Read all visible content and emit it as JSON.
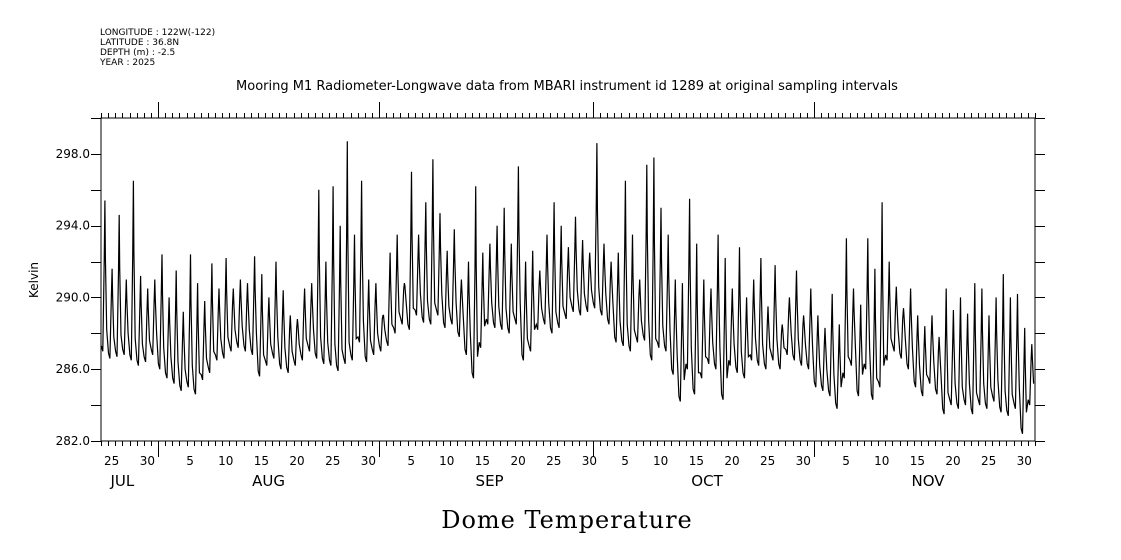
{
  "header": {
    "lines": [
      "LONGITUDE : 122W(-122)",
      "LATITUDE : 36.8N",
      "DEPTH (m) : -2.5",
      "YEAR : 2025"
    ]
  },
  "chart_data": {
    "type": "line",
    "title": "Mooring M1 Radiometer-Longwave data from MBARI instrument id 1289 at original sampling intervals",
    "bottom_title": "Dome Temperature",
    "ylabel": "Kelvin",
    "xlabel": "",
    "ylim": [
      282,
      300
    ],
    "yticks": [
      "282.0",
      "286.0",
      "290.0",
      "294.0",
      "298.0"
    ],
    "ytick_values": [
      282,
      286,
      290,
      294,
      298
    ],
    "x_start": "2025-07-24",
    "x_days": 131,
    "month_starts_day": [
      8,
      39,
      69,
      100
    ],
    "day_labels": [
      {
        "day": 1,
        "label": "25"
      },
      {
        "day": 6,
        "label": "30"
      },
      {
        "day": 12,
        "label": "5"
      },
      {
        "day": 17,
        "label": "10"
      },
      {
        "day": 22,
        "label": "15"
      },
      {
        "day": 27,
        "label": "20"
      },
      {
        "day": 32,
        "label": "25"
      },
      {
        "day": 37,
        "label": "30"
      },
      {
        "day": 43,
        "label": "5"
      },
      {
        "day": 48,
        "label": "10"
      },
      {
        "day": 53,
        "label": "15"
      },
      {
        "day": 58,
        "label": "20"
      },
      {
        "day": 63,
        "label": "25"
      },
      {
        "day": 68,
        "label": "30"
      },
      {
        "day": 73,
        "label": "5"
      },
      {
        "day": 78,
        "label": "10"
      },
      {
        "day": 83,
        "label": "15"
      },
      {
        "day": 88,
        "label": "20"
      },
      {
        "day": 93,
        "label": "25"
      },
      {
        "day": 98,
        "label": "30"
      },
      {
        "day": 104,
        "label": "5"
      },
      {
        "day": 109,
        "label": "10"
      },
      {
        "day": 114,
        "label": "15"
      },
      {
        "day": 119,
        "label": "20"
      },
      {
        "day": 124,
        "label": "25"
      },
      {
        "day": 129,
        "label": "30"
      }
    ],
    "month_labels": [
      {
        "day": 2.5,
        "label": "JUL"
      },
      {
        "day": 23,
        "label": "AUG"
      },
      {
        "day": 54,
        "label": "SEP"
      },
      {
        "day": 84.5,
        "label": "OCT"
      },
      {
        "day": 115.5,
        "label": "NOV"
      }
    ],
    "series": [
      {
        "name": "Dome Temperature",
        "color": "#000000",
        "daily_max": [
          295.4,
          291.6,
          294.6,
          291.0,
          296.5,
          291.2,
          290.5,
          291.0,
          292.4,
          290.0,
          291.5,
          289.2,
          292.4,
          290.8,
          289.8,
          291.9,
          290.5,
          292.2,
          290.5,
          291.0,
          290.8,
          292.3,
          291.3,
          290.0,
          292.0,
          290.4,
          289.0,
          288.8,
          290.5,
          290.8,
          296.0,
          292.0,
          296.2,
          294.0,
          298.7,
          293.5,
          296.5,
          291.0,
          290.8,
          289.0,
          292.5,
          293.5,
          290.8,
          297.0,
          293.5,
          295.3,
          297.7,
          294.7,
          292.6,
          293.8,
          291.0,
          292.0,
          296.2,
          292.5,
          293.0,
          294.0,
          295.0,
          293.0,
          297.3,
          292.0,
          292.6,
          291.5,
          293.5,
          295.3,
          294.0,
          292.8,
          294.5,
          293.2,
          292.5,
          298.6,
          293.0,
          292.0,
          292.5,
          296.5,
          293.5,
          291.0,
          297.4,
          297.8,
          295.0,
          293.5,
          291.0,
          290.8,
          295.5,
          293.0,
          291.0,
          290.5,
          293.5,
          292.2,
          290.5,
          292.8,
          290.0,
          291.0,
          292.2,
          289.5,
          291.8,
          288.5,
          290.0,
          291.5,
          289.0,
          290.5,
          289.0,
          288.3,
          290.2,
          288.5,
          293.3,
          290.5,
          289.6,
          293.3,
          291.6,
          295.3,
          292.0,
          290.6,
          289.4,
          290.5,
          289.0,
          288.4,
          289.0,
          287.8,
          290.5,
          289.3,
          290.0,
          289.1,
          290.8,
          290.5,
          289.0,
          290.0,
          291.3,
          290.0,
          290.2,
          288.3,
          287.4
        ],
        "daily_min": [
          287.0,
          286.6,
          286.7,
          286.8,
          286.5,
          286.2,
          286.4,
          286.8,
          286.0,
          285.5,
          285.2,
          284.8,
          285.0,
          284.6,
          285.4,
          285.8,
          286.5,
          286.6,
          287.0,
          287.2,
          287.0,
          286.8,
          285.6,
          286.2,
          286.6,
          286.0,
          285.8,
          286.2,
          286.5,
          287.0,
          286.6,
          286.3,
          286.2,
          285.9,
          286.3,
          286.5,
          287.5,
          286.4,
          286.8,
          287.0,
          287.3,
          288.0,
          288.5,
          288.2,
          289.0,
          288.6,
          288.5,
          289.0,
          288.3,
          288.5,
          287.8,
          286.8,
          285.5,
          287.2,
          288.5,
          288.3,
          288.2,
          288.0,
          288.5,
          286.5,
          287.0,
          288.2,
          288.5,
          288.0,
          288.3,
          288.8,
          289.2,
          289.0,
          289.2,
          289.4,
          289.0,
          288.5,
          287.5,
          287.3,
          287.0,
          287.5,
          287.6,
          286.5,
          287.2,
          287.0,
          285.7,
          284.2,
          286.0,
          284.6,
          285.5,
          286.3,
          286.0,
          284.3,
          286.2,
          285.8,
          285.5,
          286.5,
          286.2,
          286.0,
          286.5,
          286.0,
          286.8,
          286.5,
          286.2,
          286.0,
          285.0,
          284.8,
          284.5,
          283.8,
          285.5,
          286.2,
          284.5,
          286.0,
          284.3,
          285.0,
          286.5,
          287.0,
          286.6,
          286.0,
          285.0,
          284.5,
          285.2,
          284.6,
          283.5,
          284.0,
          283.8,
          284.0,
          283.5,
          284.0,
          283.8,
          284.2,
          283.6,
          283.4,
          283.8,
          282.4,
          284.0
        ]
      }
    ]
  }
}
